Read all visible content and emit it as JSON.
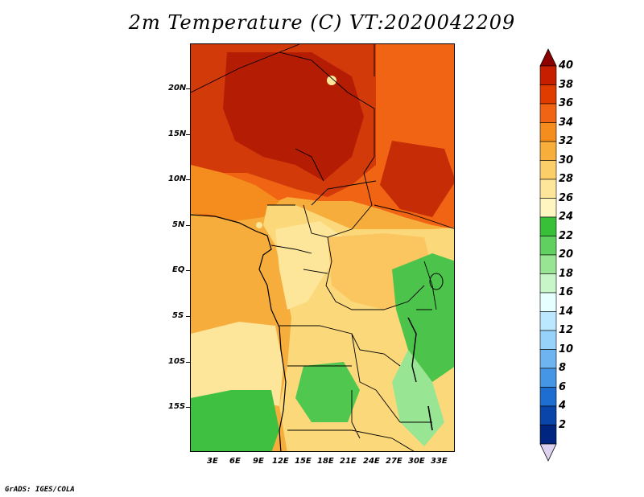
{
  "title": "2m Temperature (C) VT:2020042209",
  "credit": "GrADS: IGES/COLA",
  "axes": {
    "lat_labels": [
      "20N",
      "15N",
      "10N",
      "5N",
      "EQ",
      "5S",
      "10S",
      "15S"
    ],
    "lon_labels": [
      "3E",
      "6E",
      "9E",
      "12E",
      "15E",
      "18E",
      "21E",
      "24E",
      "27E",
      "30E",
      "33E"
    ]
  },
  "colorbar": {
    "labels": [
      "40",
      "38",
      "36",
      "34",
      "32",
      "30",
      "28",
      "26",
      "24",
      "22",
      "20",
      "18",
      "16",
      "14",
      "12",
      "10",
      "8",
      "6",
      "4",
      "2"
    ],
    "colors": [
      "#a00000",
      "#c81e00",
      "#e03c00",
      "#f06414",
      "#f58c1e",
      "#f8ae3a",
      "#fcce6a",
      "#fde69a",
      "#fff5c0",
      "#38c038",
      "#60d060",
      "#98e694",
      "#c8f6c8",
      "#e6ffff",
      "#bce8ff",
      "#96d2fa",
      "#6eb4f0",
      "#4696e6",
      "#1e6ed2",
      "#0a46aa",
      "#002580"
    ],
    "top_triangle_color": "#8c0000",
    "bottom_triangle_color": "#dcd2f0"
  },
  "colors": {
    "ocean_orange": "#f7ad3c",
    "sahara_dark": "#c21f06",
    "savanna": "#f0781e",
    "congo_tan": "#fbe296",
    "southern_green": "#40c040"
  }
}
